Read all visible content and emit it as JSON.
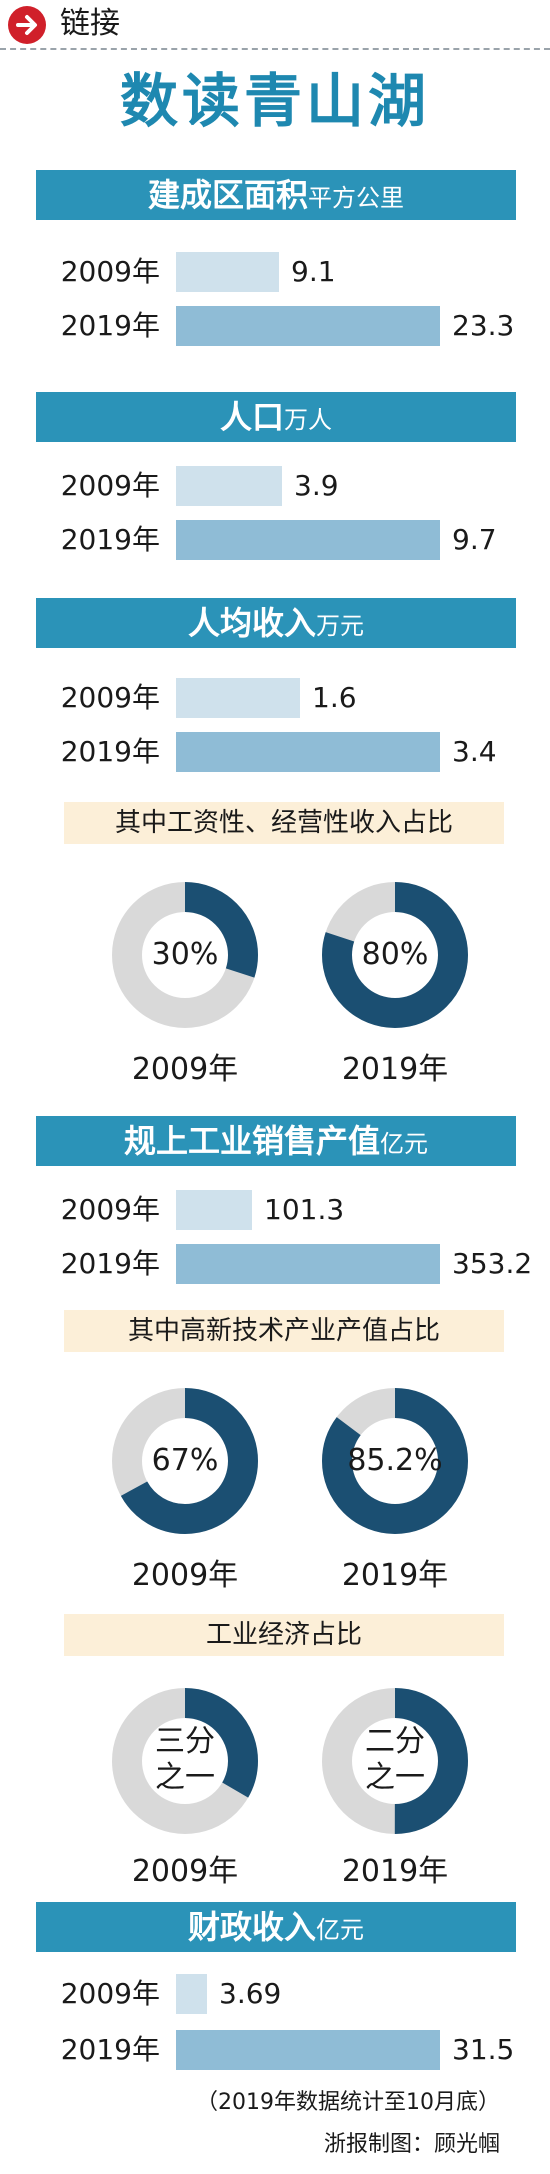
{
  "header": {
    "link_label": "链接"
  },
  "title": "数读青山湖",
  "chart_data": [
    {
      "type": "bar",
      "title": "建成区面积",
      "unit": "平方公里",
      "categories": [
        "2009年",
        "2019年"
      ],
      "values": [
        9.1,
        23.3
      ],
      "labels": [
        "9.1",
        "23.3"
      ]
    },
    {
      "type": "bar",
      "title": "人口",
      "unit": "万人",
      "categories": [
        "2009年",
        "2019年"
      ],
      "values": [
        3.9,
        9.7
      ],
      "labels": [
        "3.9",
        "9.7"
      ]
    },
    {
      "type": "bar",
      "title": "人均收入",
      "unit": "万元",
      "categories": [
        "2009年",
        "2019年"
      ],
      "values": [
        1.6,
        3.4
      ],
      "labels": [
        "1.6",
        "3.4"
      ]
    },
    {
      "type": "pie",
      "title": "其中工资性、经营性收入占比",
      "categories": [
        "2009年",
        "2019年"
      ],
      "values": [
        30,
        80
      ],
      "labels": [
        "30%",
        "80%"
      ]
    },
    {
      "type": "bar",
      "title": "规上工业销售产值",
      "unit": "亿元",
      "categories": [
        "2009年",
        "2019年"
      ],
      "values": [
        101.3,
        353.2
      ],
      "labels": [
        "101.3",
        "353.2"
      ]
    },
    {
      "type": "pie",
      "title": "其中高新技术产业产值占比",
      "categories": [
        "2009年",
        "2019年"
      ],
      "values": [
        67,
        85.2
      ],
      "labels": [
        "67%",
        "85.2%"
      ]
    },
    {
      "type": "pie",
      "title": "工业经济占比",
      "categories": [
        "2009年",
        "2019年"
      ],
      "values": [
        33.33,
        50
      ],
      "labels": [
        "三分\n之一",
        "二分\n之一"
      ]
    },
    {
      "type": "bar",
      "title": "财政收入",
      "unit": "亿元",
      "categories": [
        "2009年",
        "2019年"
      ],
      "values": [
        3.69,
        31.5
      ],
      "labels": [
        "3.69",
        "31.5"
      ]
    }
  ],
  "footer": {
    "note": "（2019年数据统计至10月底）",
    "credit": "浙报制图：顾光帼"
  },
  "colors": {
    "header_bg": "#2b93b8",
    "bar_2009": "#cfe1ec",
    "bar_2019": "#8fbcd6",
    "donut_fill": "#1b4f72",
    "donut_track": "#d9d9d9",
    "banner_bg": "#fcefd8",
    "title": "#1e88b0",
    "arrow": "#d0202a"
  }
}
